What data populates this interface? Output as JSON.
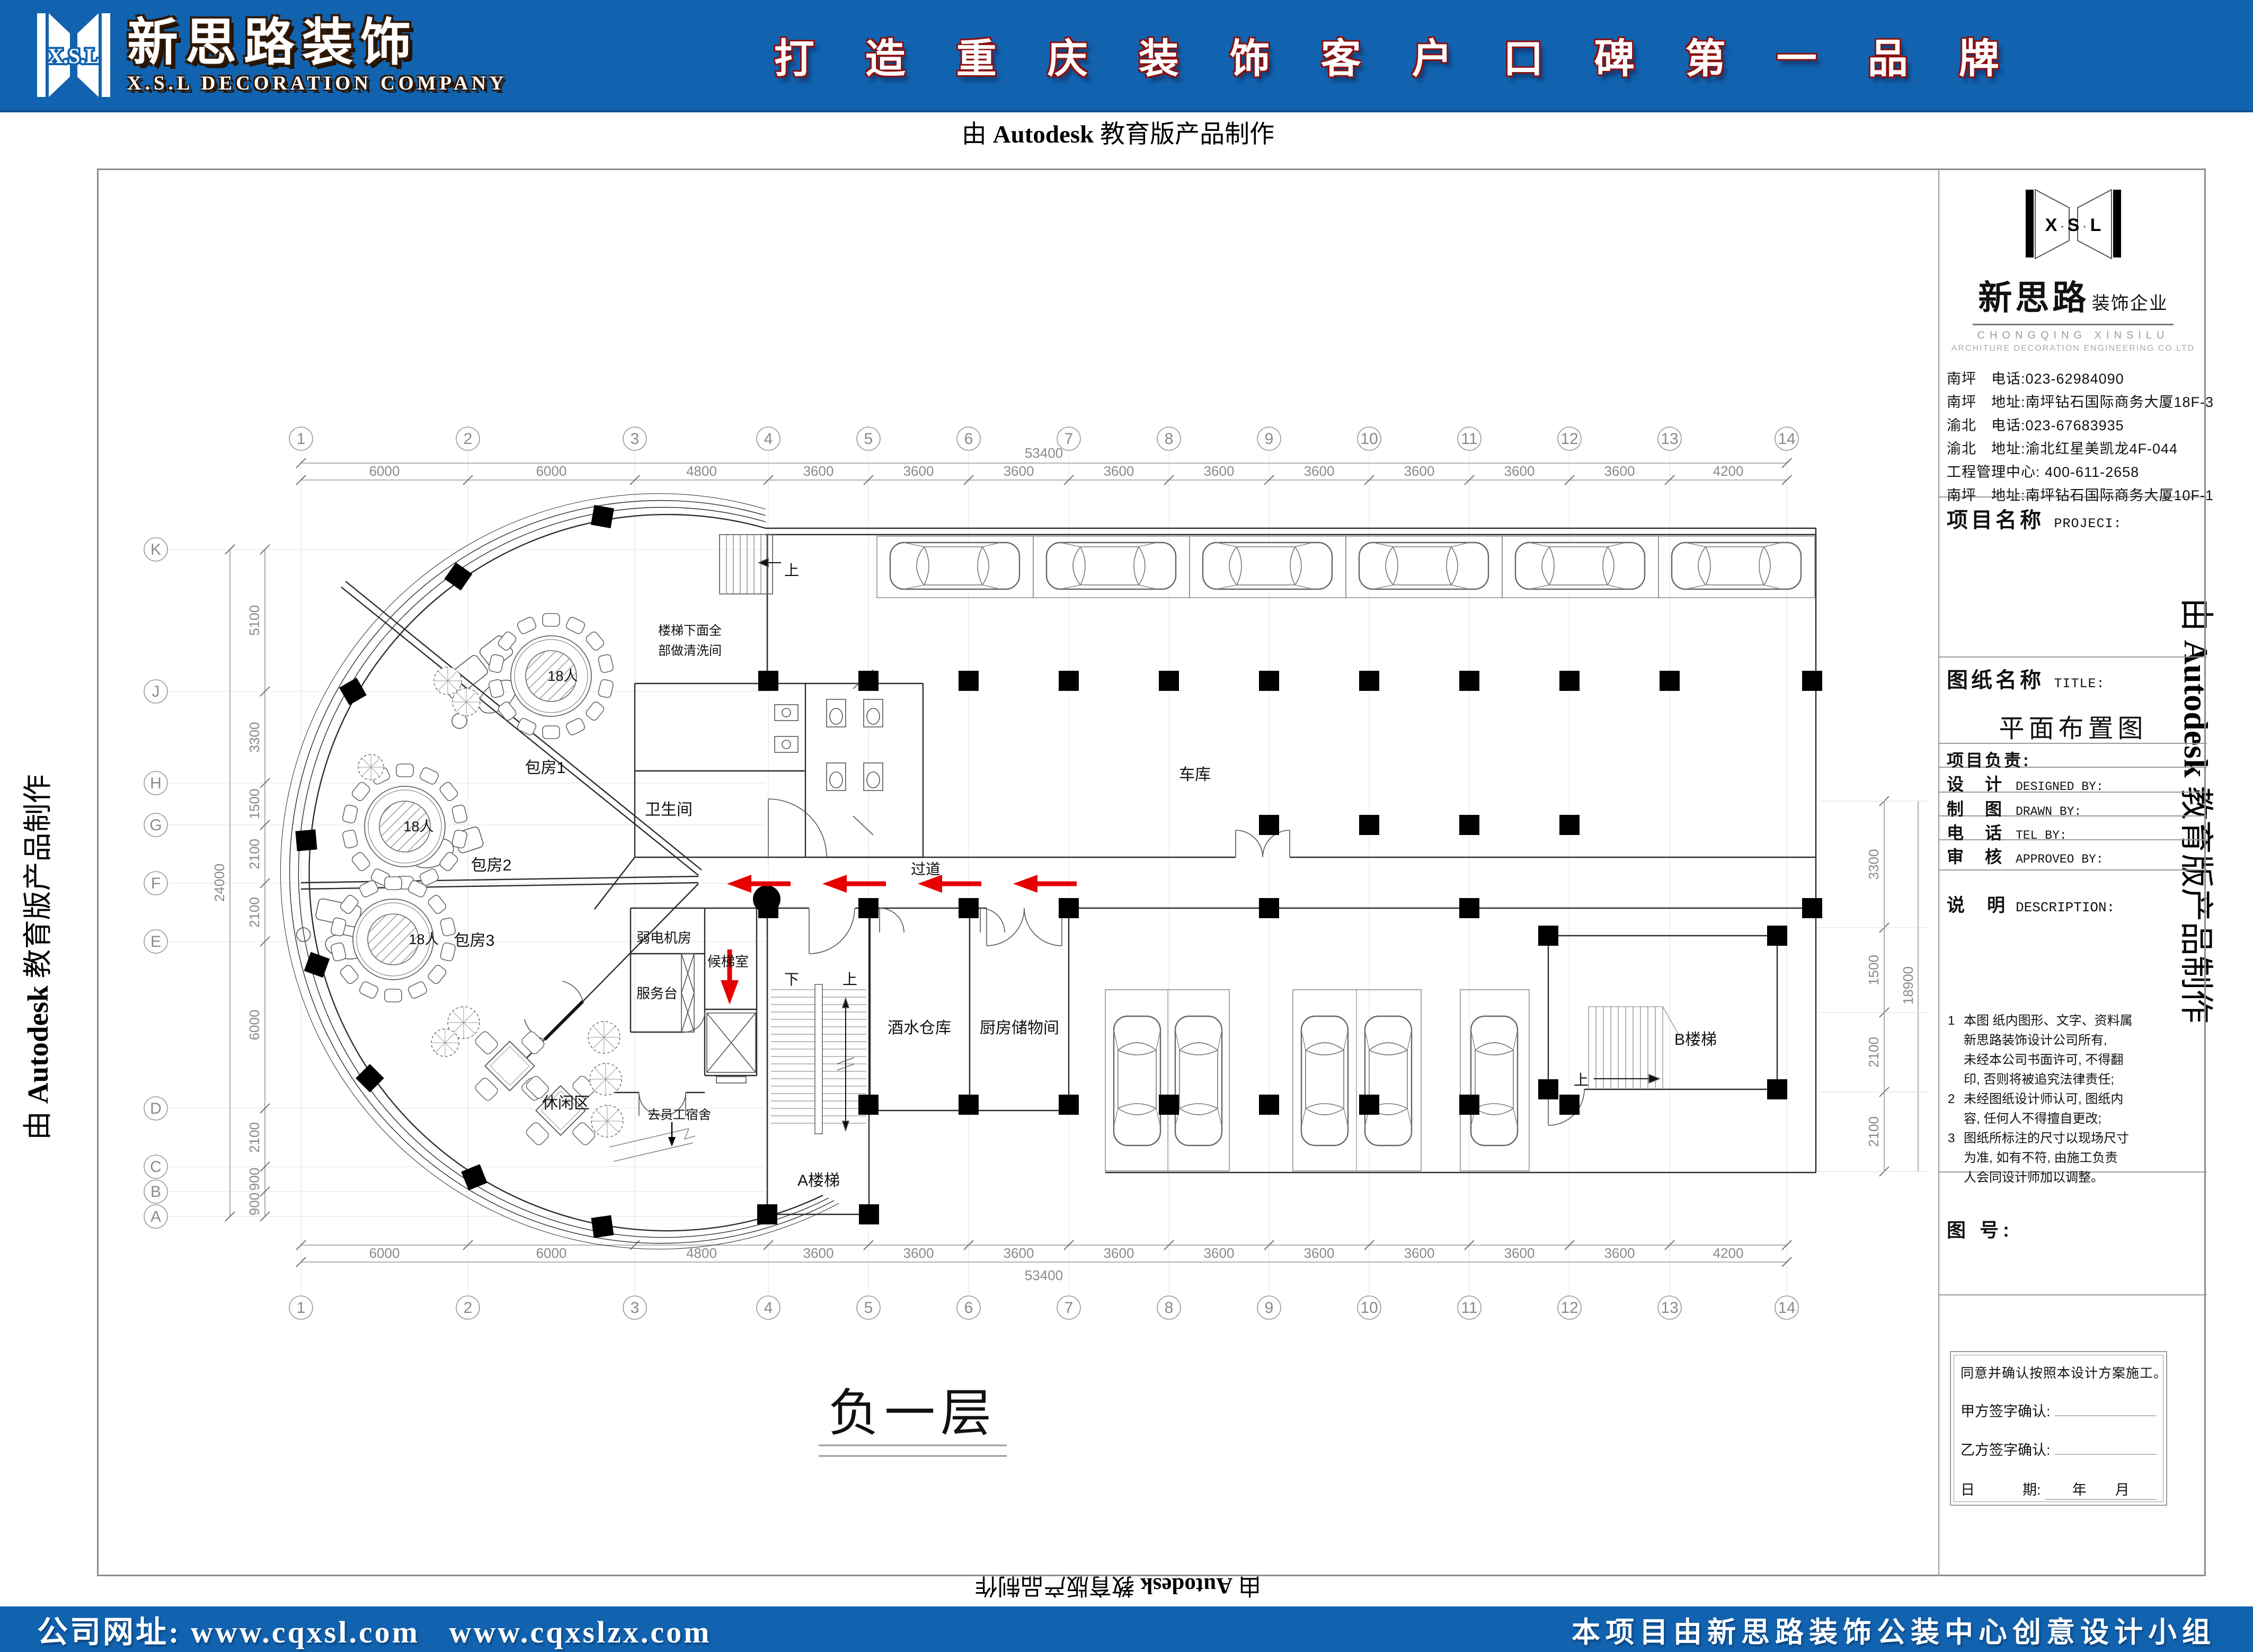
{
  "banner": {
    "logo_mark": "X.S.L",
    "logo_cn": "新思路装饰",
    "logo_en": "X.S.L DECORATION COMPANY",
    "slogan": "打造重庆装饰客户口碑第一品牌",
    "accent_blue": "#1163af",
    "accent_red": "#8b1111"
  },
  "stamp": {
    "prefix": "由 ",
    "brand": "Autodesk",
    "suffix": " 教育版产品制作"
  },
  "footer": {
    "website_label": "公司网址:",
    "url_1": "www.cqxsl.com",
    "url_2": "www.cqxslzx.com",
    "credit": "本项目由新思路装饰公装中心创意设计小组"
  },
  "title_block": {
    "logo": {
      "x": "X",
      "s": "S",
      "l": "L",
      "brand": "新思路",
      "brand_type": "装饰企业",
      "en_1": "CHONGQING  XINSILU",
      "en_2": "ARCHITURE  DECORATION  ENGINEERING  CO.LTD"
    },
    "contacts": [
      "南坪　电话:023-62984090",
      "南坪　地址:南坪钻石国际商务大厦18F-3",
      "渝北　电话:023-67683935",
      "渝北　地址:渝北红星美凯龙4F-044",
      "工程管理中心: 400-611-2658",
      "南坪　地址:南坪钻石国际商务大厦10F-1"
    ],
    "project_label": "项目名称",
    "project_en": "PROJECI:",
    "sheet_label": "图纸名称",
    "sheet_en": "TITLE:",
    "sheet_title": "平面布置图",
    "leader_label": "项目负责:",
    "rows": [
      {
        "cn": "设　计",
        "en": "DESIGNED BY:"
      },
      {
        "cn": "制　图",
        "en": "DRAWN BY:"
      },
      {
        "cn": "电　话",
        "en": "TEL BY:"
      },
      {
        "cn": "审　核",
        "en": "APPROVEO BY:"
      }
    ],
    "desc_label": "说　明",
    "desc_en": "DESCRIPTION:",
    "notes": [
      {
        "n": "1",
        "t": "本图 纸内图形、文字、资料属"
      },
      {
        "n": "",
        "t": "新思路装饰设计公司所有,"
      },
      {
        "n": "",
        "t": "未经本公司书面许可, 不得翻"
      },
      {
        "n": "",
        "t": "印, 否则将被追究法律责任;"
      },
      {
        "n": "2",
        "t": "未经图纸设计师认可, 图纸内"
      },
      {
        "n": "",
        "t": "容, 任何人不得擅自更改;"
      },
      {
        "n": "3",
        "t": "图纸所标注的尺寸以现场尺寸"
      },
      {
        "n": "",
        "t": "为准, 如有不符, 由施工负责"
      },
      {
        "n": "",
        "t": "人会同设计师加以调整。"
      }
    ],
    "fig_label": "图  号:",
    "signature": {
      "confirm": "同意并确认按照本设计方案施工。",
      "party_a": "甲方签字确认:",
      "party_b": "乙方签字确认:",
      "date_l": "日",
      "date_r": "期:",
      "year": "年",
      "month": "月"
    }
  },
  "plan": {
    "floor_title": "负一层",
    "rooms": {
      "room1": "包房1",
      "room2": "包房2",
      "room3": "包房3",
      "leisure": "休闲区",
      "toilet": "卫生间",
      "lowvolt": "弱电机房",
      "service": "服务台",
      "lobby": "候梯室",
      "stair_a": "A楼梯",
      "stair_b": "B楼梯",
      "wine": "酒水仓库",
      "kitchen": "厨房储物间",
      "garage": "车库",
      "corridor": "过道"
    },
    "labels": {
      "seats": "18人",
      "up": "上",
      "down": "下",
      "to_dorm": "去员工宿舍",
      "under_stair_1": "楼梯下面全",
      "under_stair_2": "部做清洗间"
    },
    "grid": {
      "cols": [
        "1",
        "2",
        "3",
        "4",
        "5",
        "6",
        "7",
        "8",
        "9",
        "10",
        "11",
        "12",
        "13",
        "14"
      ],
      "col_dims": [
        "6000",
        "6000",
        "4800",
        "3600",
        "3600",
        "3600",
        "3600",
        "3600",
        "3600",
        "3600",
        "3600",
        "3600",
        "4200"
      ],
      "col_total": "53400",
      "rows": [
        "K",
        "J",
        "H",
        "G",
        "F",
        "E",
        "D",
        "C",
        "B",
        "A"
      ],
      "row_dims": [
        "5100",
        "3300",
        "1500",
        "2100",
        "2100",
        "6000",
        "2100",
        "900",
        "900"
      ],
      "row_total": "24000",
      "right_dims": [
        "3300",
        "1500",
        "2100",
        "2100"
      ],
      "right_total": "18900"
    },
    "colors": {
      "arrow_red": "#e60000",
      "wall": "#2b2b2b",
      "dim": "#8a8a8a"
    }
  }
}
